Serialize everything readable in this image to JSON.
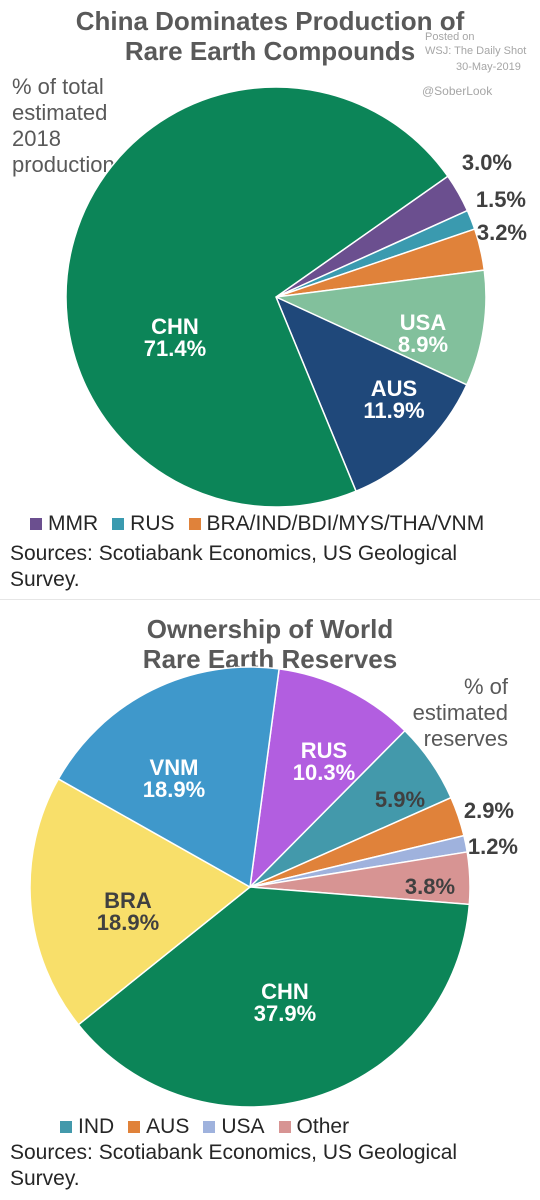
{
  "chart_data": [
    {
      "type": "pie",
      "title_lines": [
        "China Dominates Production of",
        "Rare Earth Compounds"
      ],
      "note_lines": [
        "% of total",
        "estimated",
        "2018",
        "production"
      ],
      "watermark": {
        "posted": "Posted on",
        "source": "WSJ: The Daily Shot",
        "date": "30-May-2019",
        "handle": "@SoberLook"
      },
      "slices": [
        {
          "label": "MMR",
          "value": 3.0,
          "value_label": "3.0%",
          "color": "#6b4f8f"
        },
        {
          "label": "RUS",
          "value": 1.5,
          "value_label": "1.5%",
          "color": "#3a9aaf"
        },
        {
          "label": "BRA/IND/BDI/MYS/THA/VNM",
          "value": 3.2,
          "value_label": "3.2%",
          "color": "#e0823a"
        },
        {
          "label": "USA",
          "value": 8.9,
          "value_label": "8.9%",
          "color": "#82c09c"
        },
        {
          "label": "AUS",
          "value": 11.9,
          "value_label": "11.9%",
          "color": "#1f487a"
        },
        {
          "label": "CHN",
          "value": 71.4,
          "value_label": "71.4%",
          "color": "#0c8558"
        }
      ],
      "legend": [
        "MMR",
        "RUS",
        "BRA/IND/BDI/MYS/THA/VNM"
      ],
      "source_text": "Sources: Scotiabank Economics, US Geological Survey."
    },
    {
      "type": "pie",
      "title_lines": [
        "Ownership of World",
        "Rare Earth Reserves"
      ],
      "note_lines": [
        "% of",
        "estimated",
        "reserves"
      ],
      "slices": [
        {
          "label": "RUS",
          "value": 10.3,
          "value_label": "10.3%",
          "color": "#b25ee0"
        },
        {
          "label": "IND",
          "value": 5.9,
          "value_label": "5.9%",
          "color": "#4399ab"
        },
        {
          "label": "AUS",
          "value": 2.9,
          "value_label": "2.9%",
          "color": "#e0823a"
        },
        {
          "label": "USA",
          "value": 1.2,
          "value_label": "1.2%",
          "color": "#9fb2dd"
        },
        {
          "label": "Other",
          "value": 3.8,
          "value_label": "3.8%",
          "color": "#d79493"
        },
        {
          "label": "CHN",
          "value": 37.9,
          "value_label": "37.9%",
          "color": "#0c8558"
        },
        {
          "label": "BRA",
          "value": 18.9,
          "value_label": "18.9%",
          "color": "#f8df6a"
        },
        {
          "label": "VNM",
          "value": 18.9,
          "value_label": "18.9%",
          "color": "#3f98cb"
        }
      ],
      "legend": [
        "IND",
        "AUS",
        "USA",
        "Other"
      ],
      "source_text": "Sources: Scotiabank Economics, US Geological Survey."
    }
  ]
}
